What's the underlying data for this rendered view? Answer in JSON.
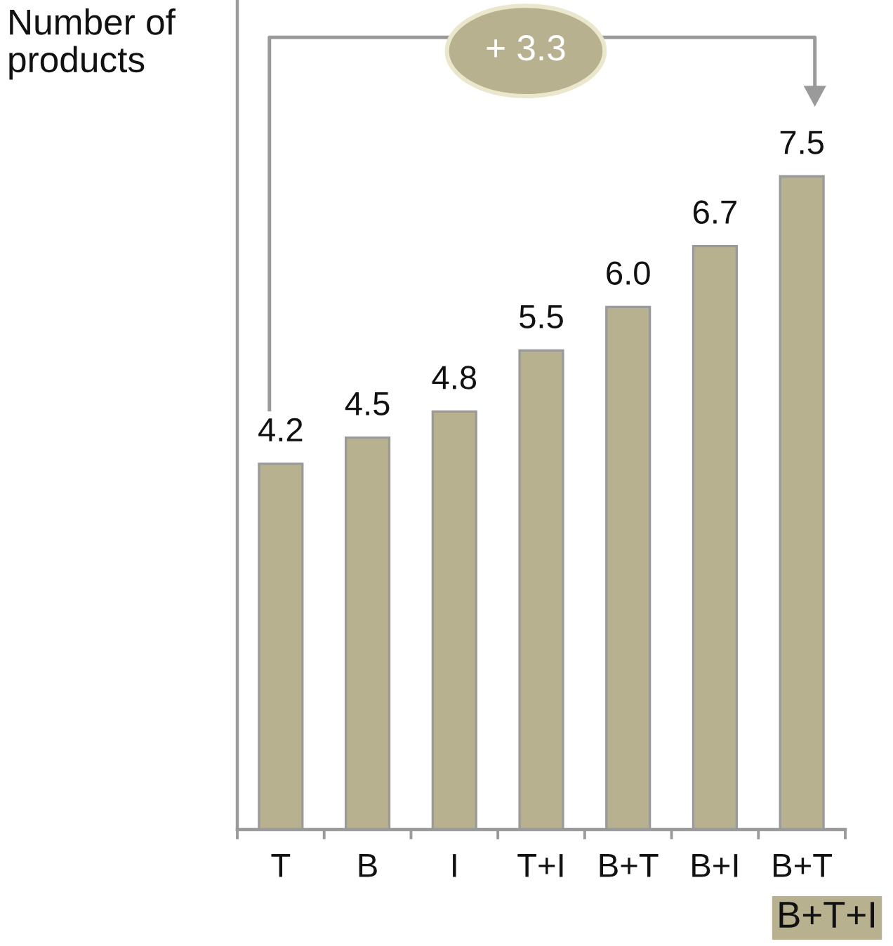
{
  "chart_data": {
    "type": "bar",
    "ylabel": "Number of\nproducts",
    "categories": [
      "T",
      "B",
      "I",
      "T+I",
      "B+T",
      "B+I",
      "B+T"
    ],
    "values": [
      4.2,
      4.5,
      4.8,
      5.5,
      6.0,
      6.7,
      7.5
    ],
    "value_labels": [
      "4.2",
      "4.5",
      "4.8",
      "5.5",
      "6.0",
      "6.7",
      "7.5"
    ],
    "color": "#b8b18f",
    "annotations": [
      "+ 3.3",
      "B+T+I"
    ]
  }
}
